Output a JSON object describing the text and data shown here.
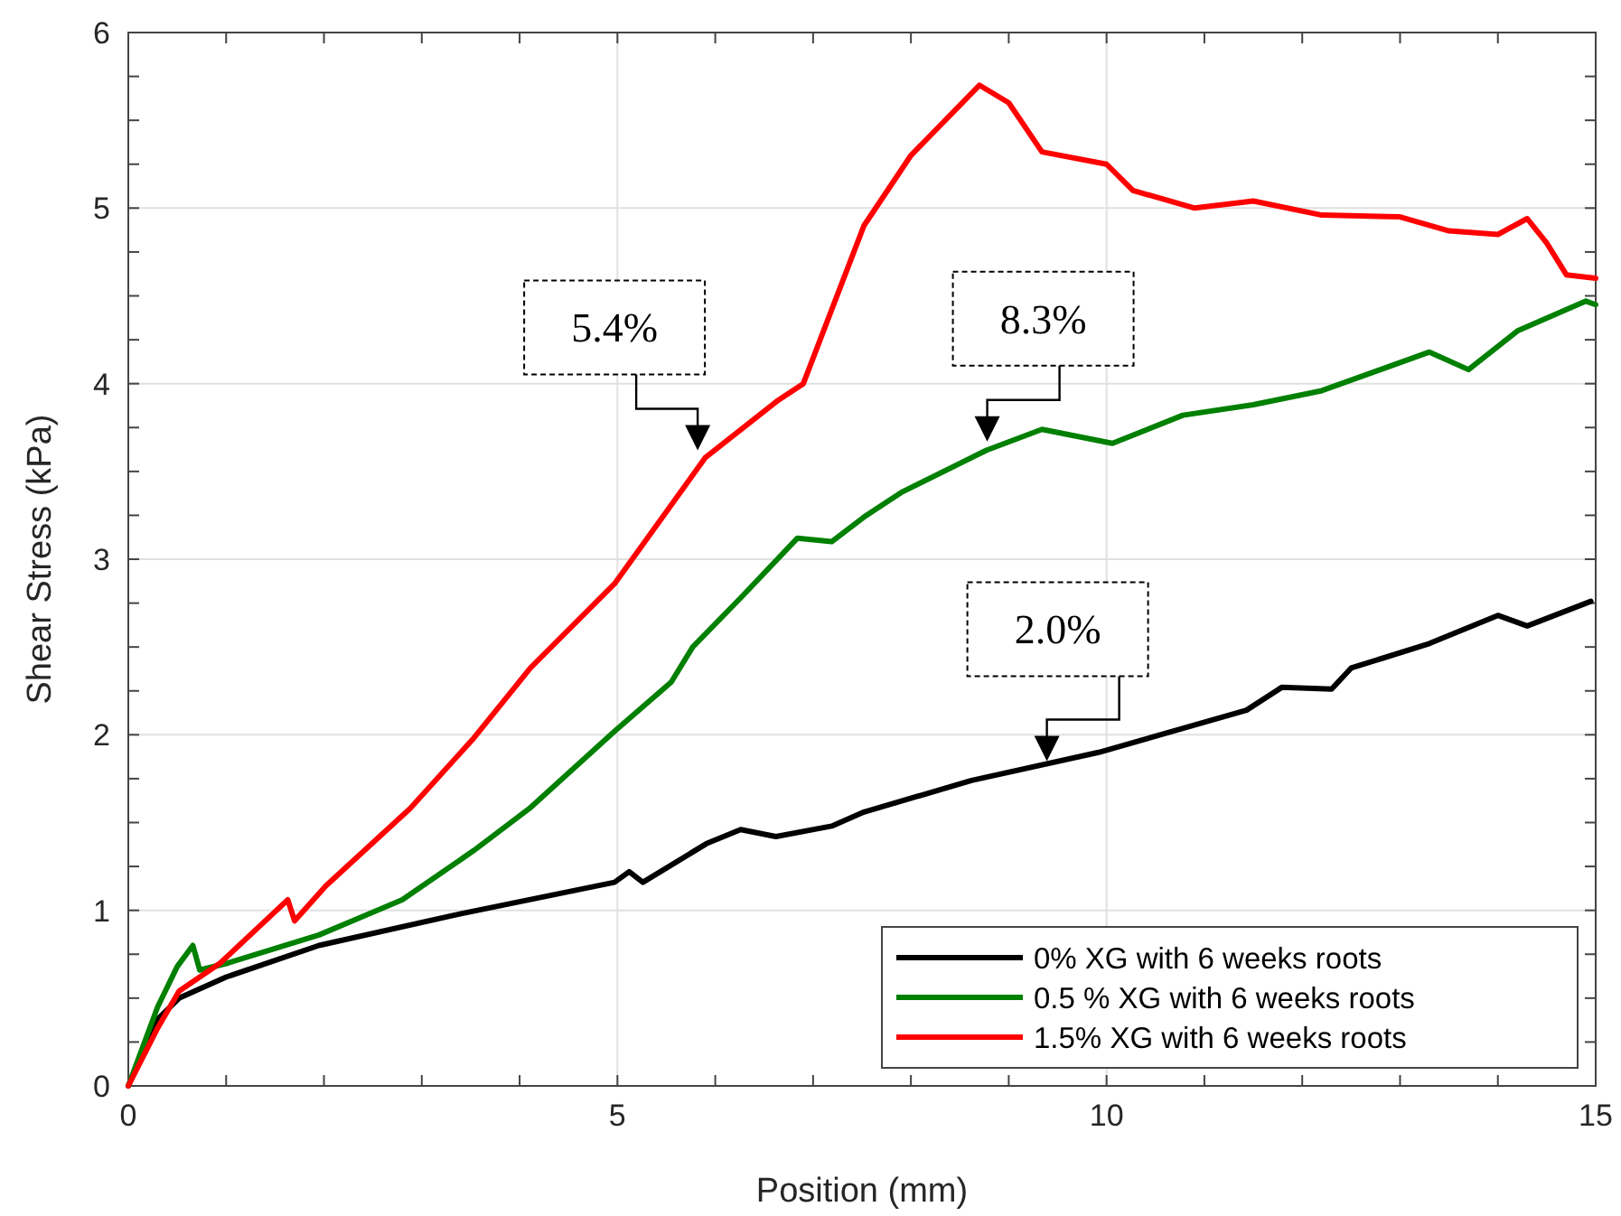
{
  "chart_data": {
    "type": "line",
    "xlabel": "Position (mm)",
    "ylabel": "Shear Stress (kPa)",
    "xlim": [
      0,
      15
    ],
    "ylim": [
      0,
      6
    ],
    "xticks": [
      0,
      {
        "value": 1,
        "label": null
      },
      {
        "value": 2,
        "label": null
      },
      {
        "value": 3,
        "label": null
      },
      {
        "value": 4,
        "label": null
      },
      5,
      {
        "value": 6,
        "label": null
      },
      {
        "value": 7,
        "label": null
      },
      {
        "value": 8,
        "label": null
      },
      {
        "value": 9,
        "label": null
      },
      10,
      {
        "value": 11,
        "label": null
      },
      {
        "value": 12,
        "label": null
      },
      {
        "value": 13,
        "label": null
      },
      {
        "value": 14,
        "label": null
      },
      15
    ],
    "yticks": [
      0,
      {
        "value": 0.25,
        "label": null
      },
      {
        "value": 0.5,
        "label": null
      },
      {
        "value": 0.75,
        "label": null
      },
      1,
      {
        "value": 1.25,
        "label": null
      },
      {
        "value": 1.5,
        "label": null
      },
      {
        "value": 1.75,
        "label": null
      },
      2,
      {
        "value": 2.25,
        "label": null
      },
      {
        "value": 2.5,
        "label": null
      },
      {
        "value": 2.75,
        "label": null
      },
      3,
      {
        "value": 3.25,
        "label": null
      },
      {
        "value": 3.5,
        "label": null
      },
      {
        "value": 3.75,
        "label": null
      },
      4,
      {
        "value": 4.25,
        "label": null
      },
      {
        "value": 4.5,
        "label": null
      },
      {
        "value": 4.75,
        "label": null
      },
      5,
      {
        "value": 5.25,
        "label": null
      },
      {
        "value": 5.5,
        "label": null
      },
      {
        "value": 5.75,
        "label": null
      },
      6
    ],
    "grid": true,
    "legend": "bottom right",
    "marker": "none",
    "line_style": "solid",
    "series": [
      {
        "name": "0% XG with 6 weeks roots",
        "color": "#000000",
        "x": [
          0,
          0.3,
          0.52,
          1.0,
          1.95,
          3.39,
          4.97,
          5.12,
          5.26,
          5.91,
          6.26,
          6.62,
          7.19,
          7.52,
          8.62,
          9.92,
          11.43,
          11.79,
          12.3,
          12.5,
          13.3,
          14.0,
          14.3,
          14.95
        ],
        "values": [
          0,
          0.38,
          0.5,
          0.62,
          0.8,
          0.98,
          1.16,
          1.22,
          1.16,
          1.38,
          1.46,
          1.42,
          1.48,
          1.56,
          1.74,
          1.9,
          2.14,
          2.27,
          2.26,
          2.38,
          2.52,
          2.68,
          2.62,
          2.76
        ]
      },
      {
        "name": "0.5 % XG with 6 weeks roots",
        "color": "#008000",
        "x": [
          0,
          0.3,
          0.5,
          0.66,
          0.73,
          1.02,
          1.95,
          2.8,
          3.53,
          4.1,
          4.97,
          5.55,
          5.77,
          6.26,
          6.84,
          7.19,
          7.52,
          7.9,
          8.77,
          9.34,
          10.06,
          10.78,
          11.5,
          12.2,
          13.3,
          13.7,
          14.2,
          14.9,
          15
        ],
        "values": [
          0,
          0.45,
          0.68,
          0.8,
          0.66,
          0.7,
          0.86,
          1.06,
          1.34,
          1.58,
          2.02,
          2.3,
          2.5,
          2.78,
          3.12,
          3.1,
          3.24,
          3.38,
          3.62,
          3.74,
          3.66,
          3.82,
          3.88,
          3.96,
          4.18,
          4.08,
          4.3,
          4.47,
          4.45
        ]
      },
      {
        "name": "1.5% XG with 6 weeks roots",
        "color": "#ff0000",
        "x": [
          0,
          0.3,
          0.52,
          0.94,
          1.63,
          1.7,
          2.02,
          2.88,
          3.53,
          4.11,
          4.97,
          5.9,
          6.63,
          6.9,
          7.52,
          8.0,
          8.7,
          9.0,
          9.34,
          10.0,
          10.27,
          10.9,
          11.5,
          12.2,
          13.0,
          13.5,
          14.0,
          14.3,
          14.5,
          14.7,
          15
        ],
        "values": [
          0,
          0.33,
          0.54,
          0.7,
          1.06,
          0.94,
          1.14,
          1.58,
          1.98,
          2.38,
          2.86,
          3.58,
          3.9,
          4.0,
          4.9,
          5.3,
          5.7,
          5.6,
          5.32,
          5.25,
          5.1,
          5.0,
          5.04,
          4.96,
          4.95,
          4.87,
          4.85,
          4.94,
          4.8,
          4.62,
          4.6
        ]
      }
    ],
    "annotations": [
      {
        "text": "5.4%",
        "x": 5.82,
        "y": 3.61
      },
      {
        "text": "8.3%",
        "x": 8.78,
        "y": 3.66
      },
      {
        "text": "2.0%",
        "x": 9.39,
        "y": 1.84
      }
    ]
  }
}
